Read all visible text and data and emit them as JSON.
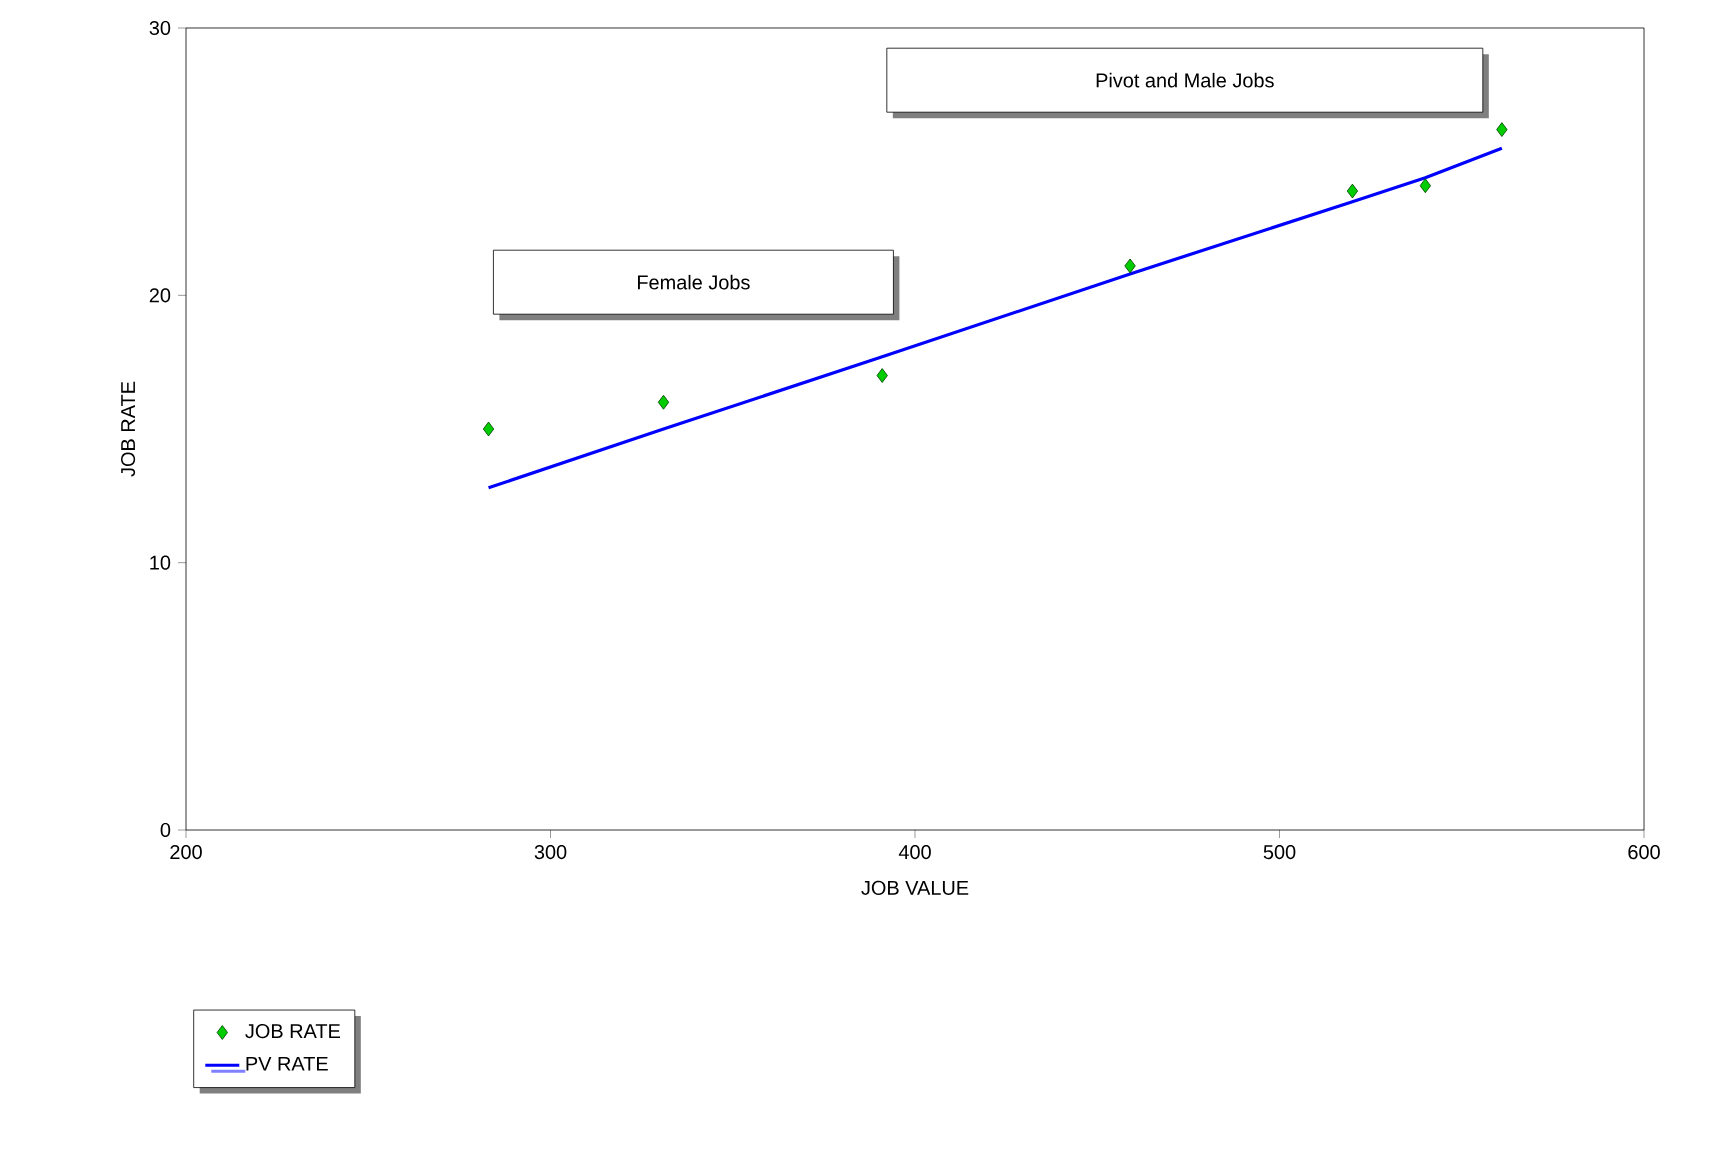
{
  "chart_data": {
    "type": "scatter",
    "xlabel": "JOB VALUE",
    "ylabel": "JOB RATE",
    "xlim": [
      200,
      600
    ],
    "xticks": [
      200,
      300,
      400,
      500,
      600
    ],
    "ylim": [
      0,
      30
    ],
    "yticks": [
      0,
      10,
      20,
      30
    ],
    "grid": false,
    "legend": "bottom left",
    "annotations": [
      "Female Jobs",
      "Pivot and Male Jobs"
    ],
    "series": [
      {
        "name": "JOB RATE",
        "type": "scatter",
        "marker": "diamond",
        "color": "#00cc00",
        "x": [
          283,
          331,
          391,
          459,
          520,
          540,
          561
        ],
        "values": [
          15.0,
          16.0,
          17.0,
          21.1,
          23.9,
          24.1,
          26.2
        ]
      },
      {
        "name": "PV RATE",
        "type": "line",
        "marker": "none",
        "line_style": "solid",
        "color": "#0000ff",
        "x": [
          283,
          331,
          391,
          459,
          520,
          540,
          561
        ],
        "values": [
          12.8,
          15.0,
          17.7,
          20.8,
          23.5,
          24.4,
          25.5
        ]
      }
    ]
  }
}
